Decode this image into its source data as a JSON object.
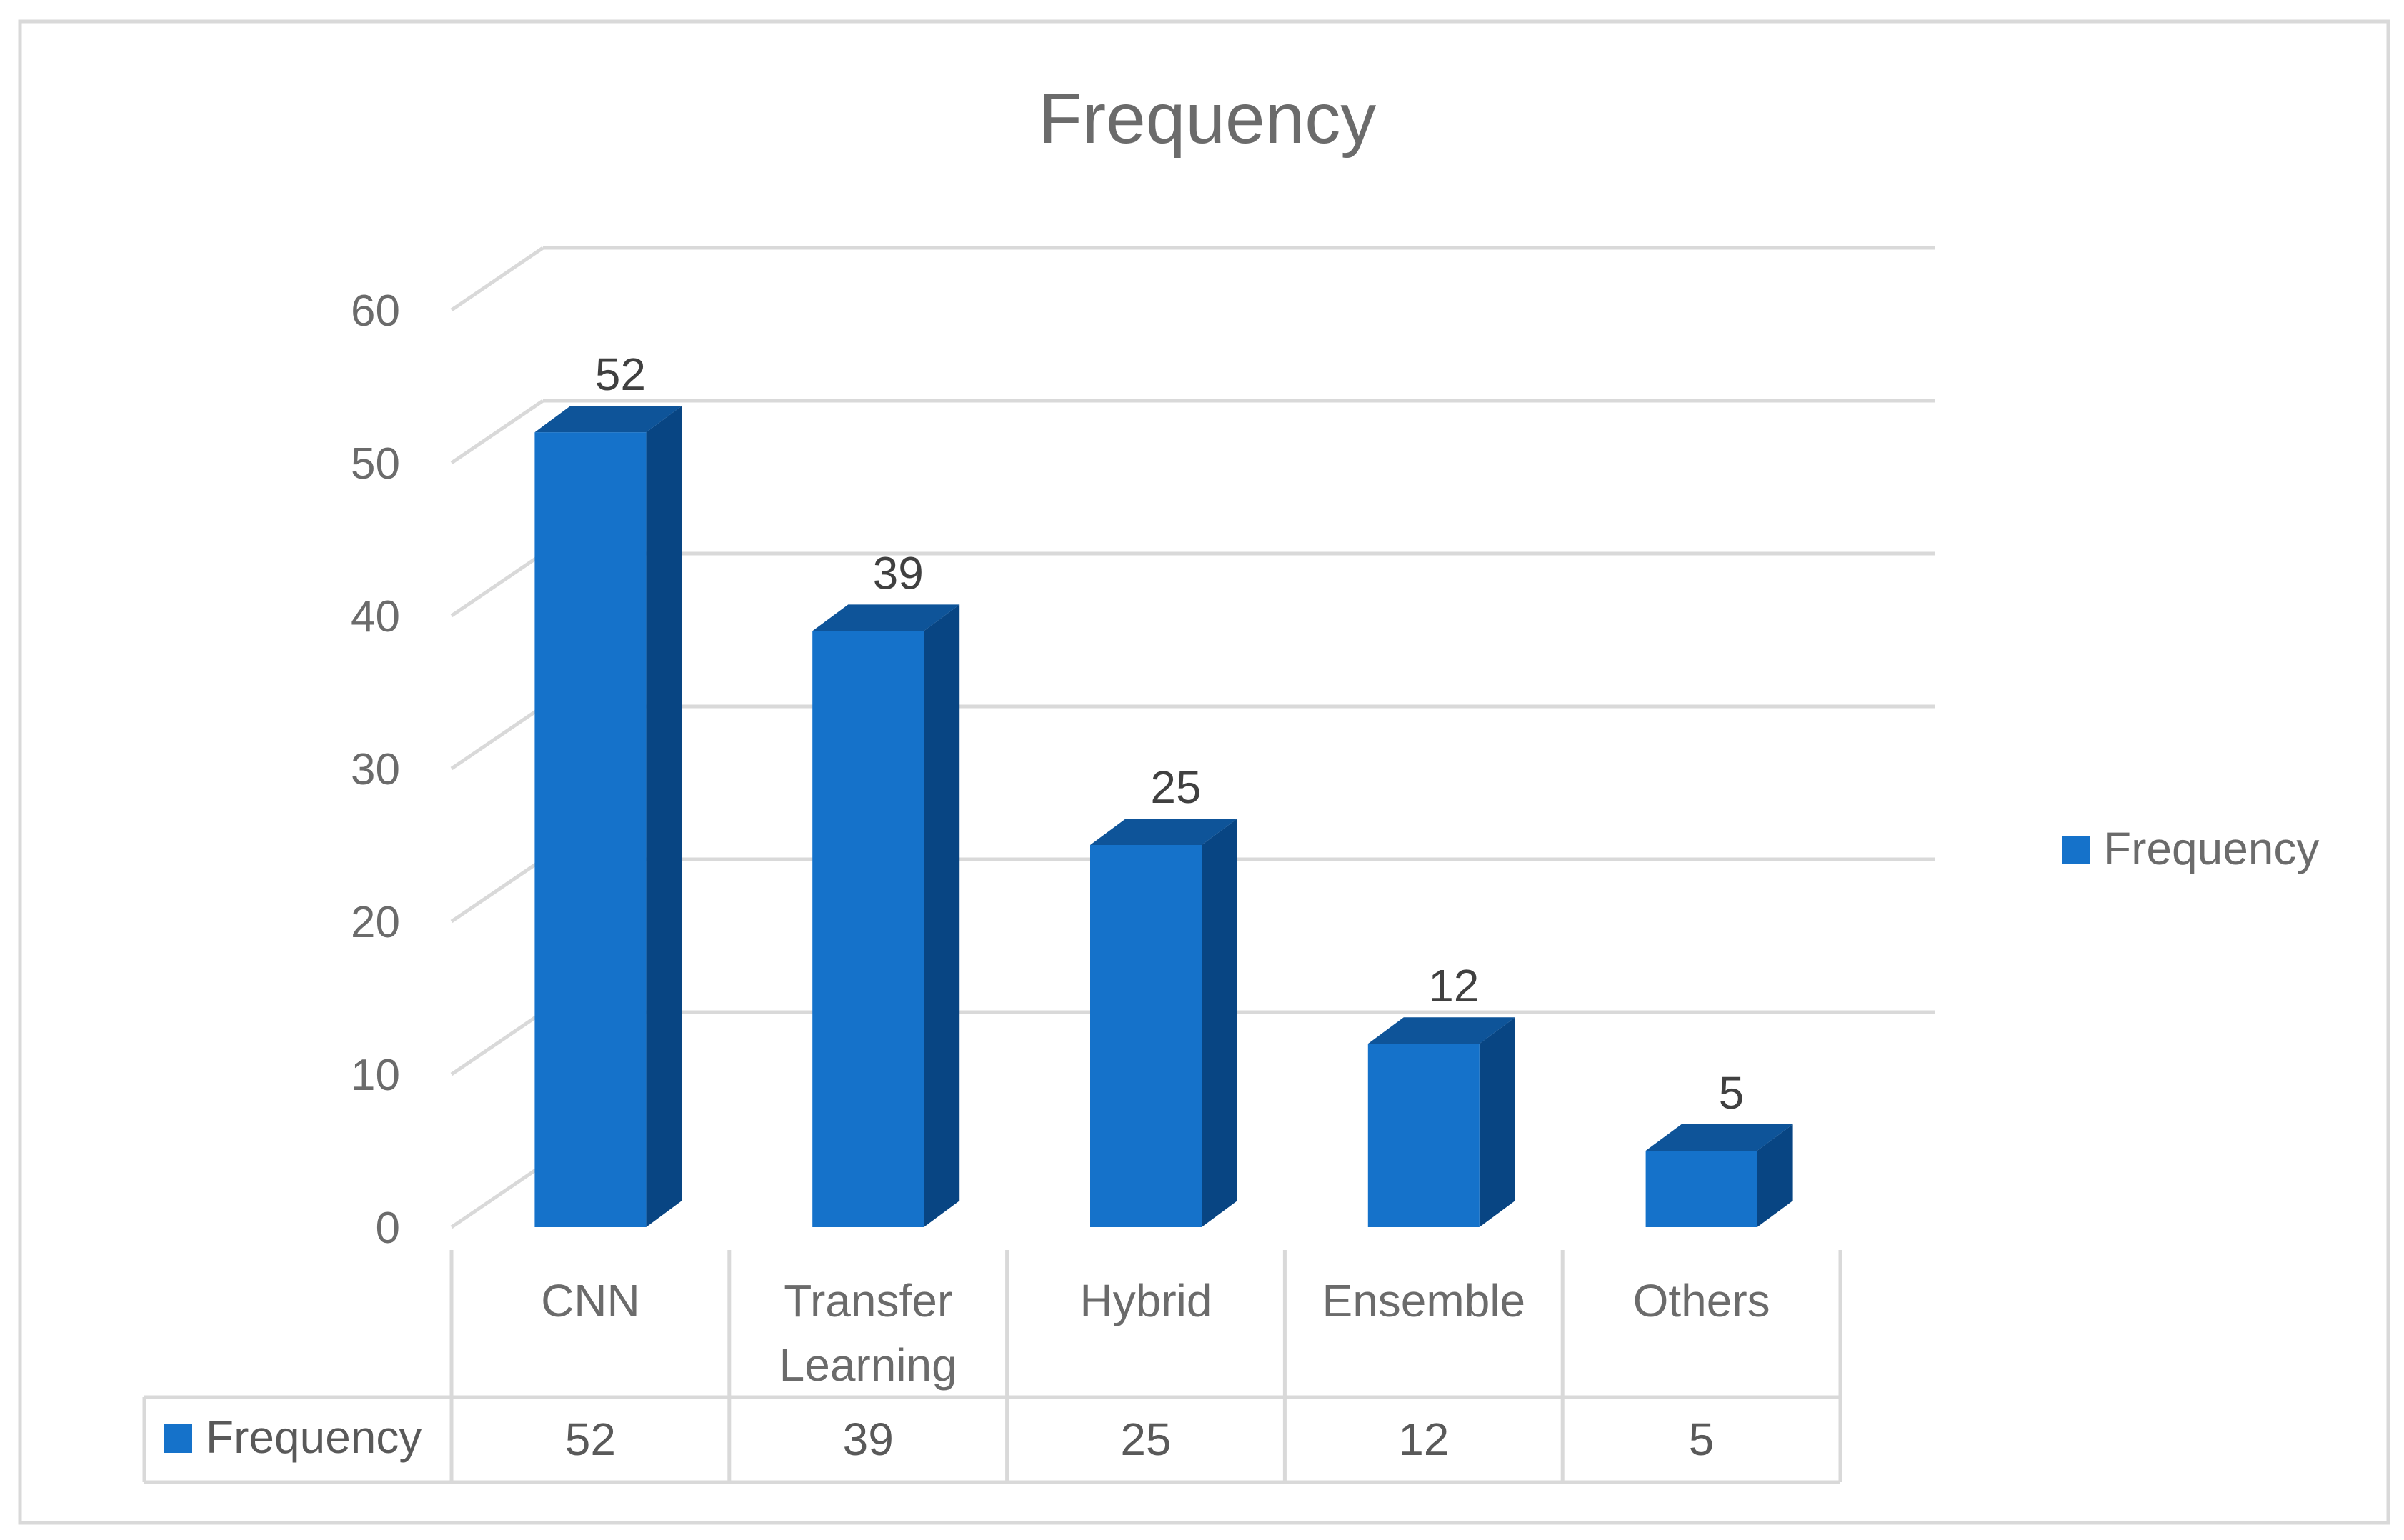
{
  "chart_data": {
    "type": "bar",
    "title": "Frequency",
    "categories": [
      "CNN",
      "Transfer Learning",
      "Hybrid",
      "Ensemble",
      "Others"
    ],
    "series": [
      {
        "name": "Frequency",
        "values": [
          52,
          39,
          25,
          12,
          5
        ],
        "color": "#1572CA"
      }
    ],
    "y_ticks": [
      "0",
      "10",
      "20",
      "30",
      "40",
      "50",
      "60"
    ],
    "ylim": [
      0,
      60
    ],
    "grid": true,
    "legend": "right",
    "data_table": true,
    "colors": {
      "bar_front": "#1572CA",
      "bar_side": "#084583",
      "bar_top": "#0E5499",
      "grid": "#d9d9d9",
      "text": "#6b6b6b"
    }
  }
}
